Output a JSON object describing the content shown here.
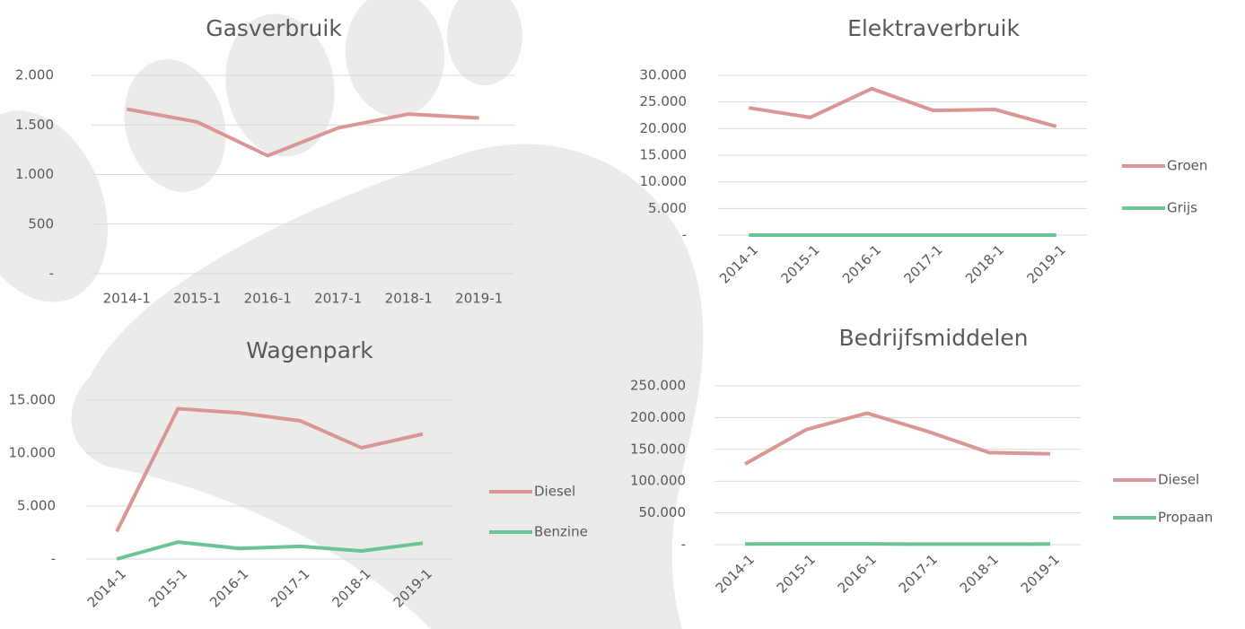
{
  "chart_data": [
    {
      "type": "line",
      "title": "Gasverbruik",
      "categories": [
        "2014-1",
        "2015-1",
        "2016-1",
        "2017-1",
        "2018-1",
        "2019-1"
      ],
      "series": [
        {
          "name": "Gasverbruik",
          "color": "#d99694",
          "values": [
            1660,
            1530,
            1190,
            1470,
            1610,
            1570
          ]
        }
      ],
      "ylim": [
        0,
        2000
      ],
      "yticks": [
        {
          "value": 0,
          "label": "-"
        },
        500,
        {
          "value": 1000,
          "label": "1.000"
        },
        {
          "value": 1500,
          "label": "1.500"
        },
        {
          "value": 2000,
          "label": "2.000"
        }
      ],
      "grid": true,
      "legend": "none"
    },
    {
      "type": "line",
      "title": "Elektraverbruik",
      "categories": [
        "2014-1",
        "2015-1",
        "2016-1",
        "2017-1",
        "2018-1",
        "2019-1"
      ],
      "series": [
        {
          "name": "Groen",
          "color": "#d99694",
          "values": [
            23900,
            22100,
            27500,
            23400,
            23600,
            20400
          ]
        },
        {
          "name": "Grijs",
          "color": "#6cc395",
          "values": [
            0,
            0,
            0,
            0,
            0,
            0
          ]
        }
      ],
      "ylim": [
        0,
        30000
      ],
      "yticks": [
        {
          "value": 0,
          "label": "-"
        },
        {
          "value": 5000,
          "label": "5.000"
        },
        {
          "value": 10000,
          "label": "10.000"
        },
        {
          "value": 15000,
          "label": "15.000"
        },
        {
          "value": 20000,
          "label": "20.000"
        },
        {
          "value": 25000,
          "label": "25.000"
        },
        {
          "value": 30000,
          "label": "30.000"
        }
      ],
      "grid": true,
      "legend": "right"
    },
    {
      "type": "line",
      "title": "Wagenpark",
      "categories": [
        "2014-1",
        "2015-1",
        "2016-1",
        "2017-1",
        "2018-1",
        "2019-1"
      ],
      "series": [
        {
          "name": "Diesel",
          "color": "#d99694",
          "values": [
            2600,
            14200,
            13800,
            13050,
            10500,
            11800
          ]
        },
        {
          "name": "Benzine",
          "color": "#6cc395",
          "values": [
            0,
            1600,
            1000,
            1200,
            760,
            1500
          ]
        }
      ],
      "ylim": [
        0,
        15000
      ],
      "yticks": [
        {
          "value": 0,
          "label": "-"
        },
        {
          "value": 5000,
          "label": "5.000"
        },
        {
          "value": 10000,
          "label": "10.000"
        },
        {
          "value": 15000,
          "label": "15.000"
        }
      ],
      "grid": true,
      "legend": "right"
    },
    {
      "type": "line",
      "title": "Bedrijfsmiddelen",
      "categories": [
        "2014-1",
        "2015-1",
        "2016-1",
        "2017-1",
        "2018-1",
        "2019-1"
      ],
      "series": [
        {
          "name": "Diesel",
          "color": "#d99694",
          "values": [
            127000,
            181000,
            207000,
            178000,
            145000,
            143000
          ]
        },
        {
          "name": "Propaan",
          "color": "#6cc395",
          "values": [
            1000,
            1200,
            1200,
            800,
            800,
            1000
          ]
        }
      ],
      "ylim": [
        0,
        250000
      ],
      "yticks": [
        {
          "value": 0,
          "label": "-"
        },
        {
          "value": 50000,
          "label": "50.000"
        },
        {
          "value": 100000,
          "label": "100.000"
        },
        {
          "value": 150000,
          "label": "150.000"
        },
        {
          "value": 200000,
          "label": "200.000"
        },
        {
          "value": 250000,
          "label": "250.000"
        }
      ],
      "grid": true,
      "legend": "right"
    }
  ]
}
